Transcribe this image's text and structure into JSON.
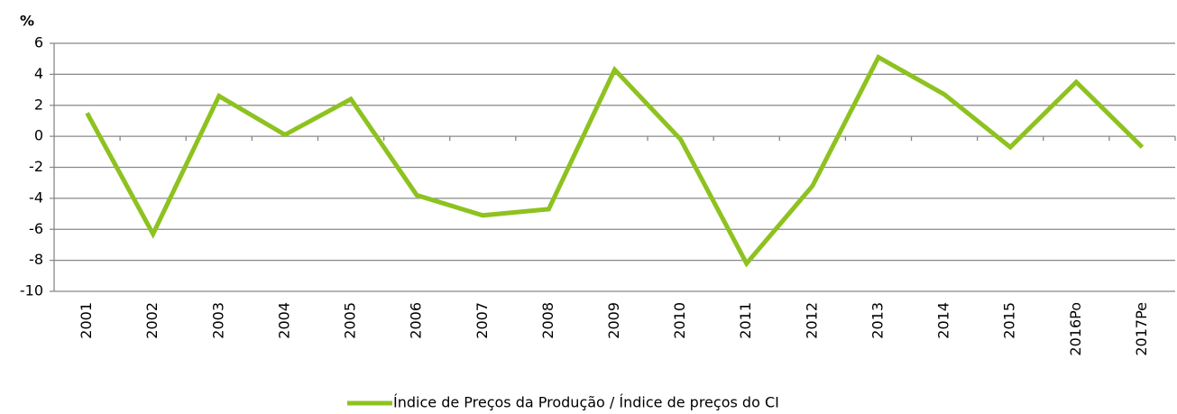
{
  "chart_data": {
    "type": "line",
    "y_axis_label": "%",
    "categories": [
      "2001",
      "2002",
      "2003",
      "2004",
      "2005",
      "2006",
      "2007",
      "2008",
      "2009",
      "2010",
      "2011",
      "2012",
      "2013",
      "2014",
      "2015",
      "2016Po",
      "2017Pe"
    ],
    "series": [
      {
        "name": "Índice de Preços da Produção / Índice de preços do CI",
        "color": "#8dc21f",
        "values": [
          1.5,
          -6.3,
          2.6,
          0.1,
          2.4,
          -3.8,
          -5.1,
          -4.7,
          4.3,
          -0.2,
          -8.2,
          -3.2,
          5.1,
          2.7,
          -0.7,
          3.5,
          -0.7
        ]
      }
    ],
    "ylim": [
      -10,
      6
    ],
    "yticks": [
      -10,
      -8,
      -6,
      -4,
      -2,
      0,
      2,
      4,
      6
    ],
    "grid": true,
    "legend": "bottom"
  }
}
